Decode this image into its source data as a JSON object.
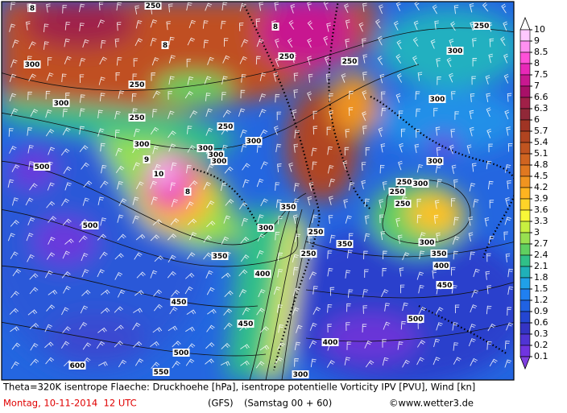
{
  "map": {
    "contour_labels": [
      250,
      250,
      250,
      250,
      250,
      250,
      250,
      250,
      250,
      250,
      250,
      250,
      300,
      300,
      300,
      300,
      300,
      300,
      300,
      300,
      300,
      300,
      300,
      300,
      300,
      300,
      350,
      350,
      350,
      350,
      400,
      400,
      400,
      450,
      450,
      450,
      500,
      500,
      500,
      500,
      550,
      600
    ],
    "pv_labels": [
      8,
      8,
      8,
      9,
      10,
      8
    ]
  },
  "colorbar": {
    "ticks": [
      10,
      9,
      8.5,
      8,
      7.5,
      7,
      6.6,
      6.3,
      6,
      5.7,
      5.4,
      5.1,
      4.8,
      4.5,
      4.2,
      3.9,
      3.6,
      3.3,
      3,
      2.7,
      2.4,
      2.1,
      1.8,
      1.5,
      1.2,
      0.9,
      0.6,
      0.3,
      0.2,
      0.1
    ],
    "colors": [
      "#ffc8ff",
      "#ff90f0",
      "#ff50d8",
      "#e828b8",
      "#c81890",
      "#a81068",
      "#a02048",
      "#902838",
      "#a03424",
      "#b04420",
      "#c05420",
      "#d06420",
      "#e07820",
      "#f09420",
      "#ffb420",
      "#ffd428",
      "#f8f838",
      "#c8f040",
      "#98e050",
      "#60d060",
      "#30c088",
      "#20b0b8",
      "#20a0e8",
      "#2080f0",
      "#2062e2",
      "#2446d2",
      "#3434c4",
      "#5034d4",
      "#7034e0"
    ],
    "over_color": "#ffffff",
    "under_color": "#8040e0"
  },
  "footer": {
    "caption": "Theta=320K isentrope Flaeche: Druckhoehe [hPa], isentrope potentielle Vorticity IPV [PVU], Wind [kn]",
    "date": "Montag, 10-11-2014  12 UTC",
    "model": "(GFS)",
    "run": "(Samstag 00 + 60)",
    "credit": "©www.wetter3.de"
  }
}
